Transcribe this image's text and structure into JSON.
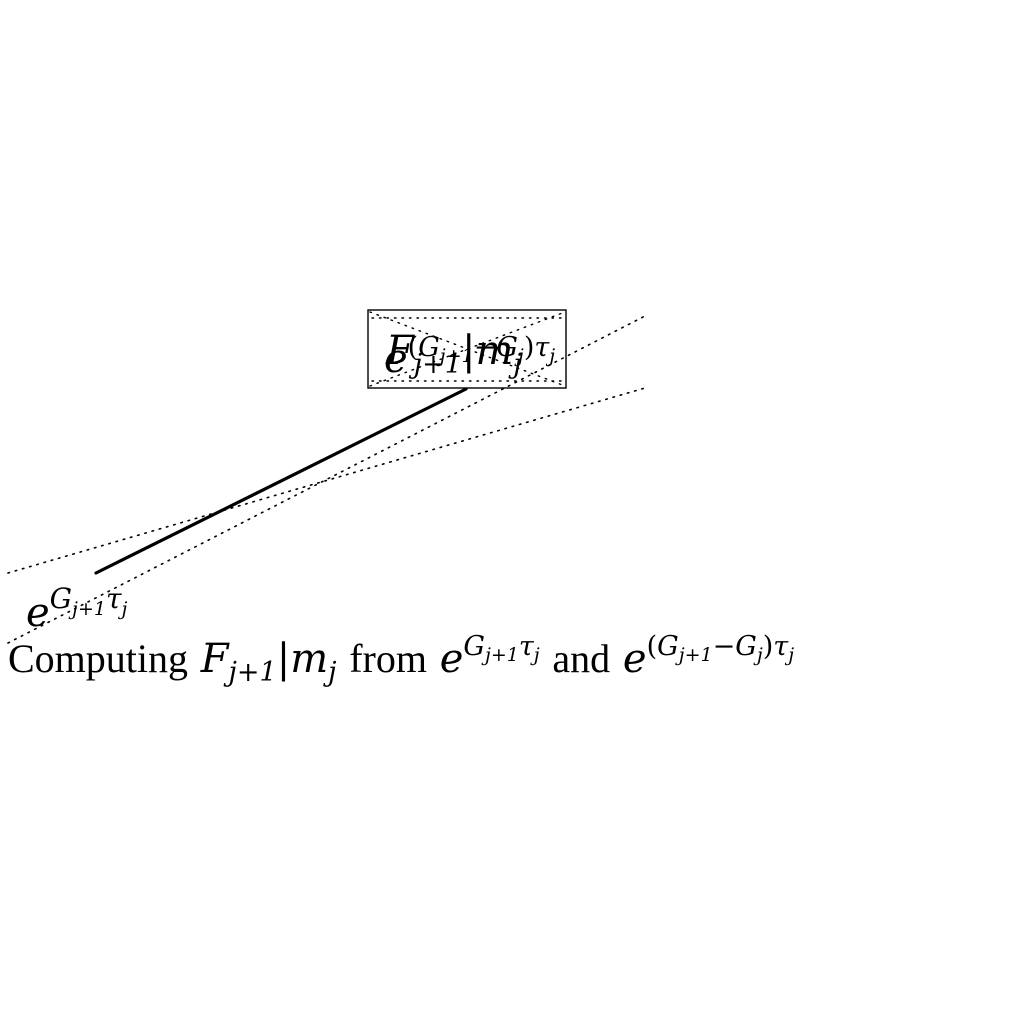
{
  "diagram": {
    "caption": {
      "prefix": "Computing",
      "f_main": "F",
      "f_sub": "j+1",
      "bar": "|",
      "m_main": "m",
      "m_sub": "j",
      "word_from": "from",
      "e1_base": "e",
      "e1_exp_G": "G",
      "e1_exp_sub": "j+1",
      "e1_exp_tau": "τ",
      "e1_exp_tau_sub": "j",
      "word_and": "and",
      "e2_base": "e",
      "e2_exp_open": "(",
      "e2_exp_G1": "G",
      "e2_exp_G1_sub": "j+1",
      "e2_exp_minus": "−",
      "e2_exp_G2": "G",
      "e2_exp_G2_sub": "j",
      "e2_exp_close": ")",
      "e2_exp_tau": "τ",
      "e2_exp_tau_sub": "j"
    },
    "box_label": {
      "f_main": "F",
      "f_sub": "j+1",
      "bar": "|",
      "m_main": "m",
      "m_sub": "j"
    },
    "box_overlay_label": {
      "base": "e",
      "exp_open": "(",
      "exp_G1": "G",
      "exp_G1_sub": "j+1",
      "exp_minus": "−",
      "exp_G2": "G",
      "exp_G2_sub": "j",
      "exp_close": ")",
      "exp_tau": "τ",
      "exp_tau_sub": "j"
    },
    "bottom_left_label": {
      "base": "e",
      "exp_G": "G",
      "exp_sub": "j+1",
      "exp_tau": "τ",
      "exp_tau_sub": "j"
    },
    "colors": {
      "ink": "#000000",
      "background": "#ffffff"
    }
  }
}
